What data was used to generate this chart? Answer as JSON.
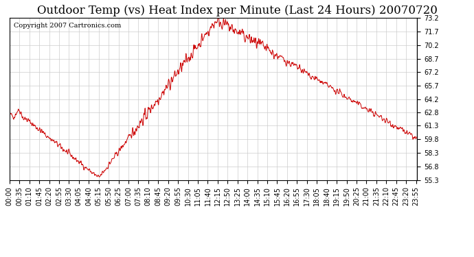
{
  "title": "Outdoor Temp (vs) Heat Index per Minute (Last 24 Hours) 20070720",
  "copyright": "Copyright 2007 Cartronics.com",
  "y_ticks": [
    55.3,
    56.8,
    58.3,
    59.8,
    61.3,
    62.8,
    64.2,
    65.7,
    67.2,
    68.7,
    70.2,
    71.7,
    73.2
  ],
  "ylim": [
    55.3,
    73.2
  ],
  "line_color": "#cc0000",
  "bg_color": "#ffffff",
  "plot_bg_color": "#ffffff",
  "grid_color": "#cccccc",
  "title_fontsize": 12,
  "copyright_fontsize": 7,
  "tick_fontsize": 7,
  "x_tick_labels": [
    "00:00",
    "00:35",
    "01:10",
    "01:45",
    "02:20",
    "02:55",
    "03:30",
    "04:05",
    "04:40",
    "05:15",
    "05:50",
    "06:25",
    "07:00",
    "07:35",
    "08:10",
    "08:45",
    "09:20",
    "09:55",
    "10:30",
    "11:05",
    "11:40",
    "12:15",
    "12:50",
    "13:25",
    "14:00",
    "14:35",
    "15:10",
    "15:45",
    "16:20",
    "16:55",
    "17:30",
    "18:05",
    "18:40",
    "19:15",
    "19:50",
    "20:25",
    "21:00",
    "21:35",
    "22:10",
    "22:45",
    "23:20",
    "23:55"
  ]
}
